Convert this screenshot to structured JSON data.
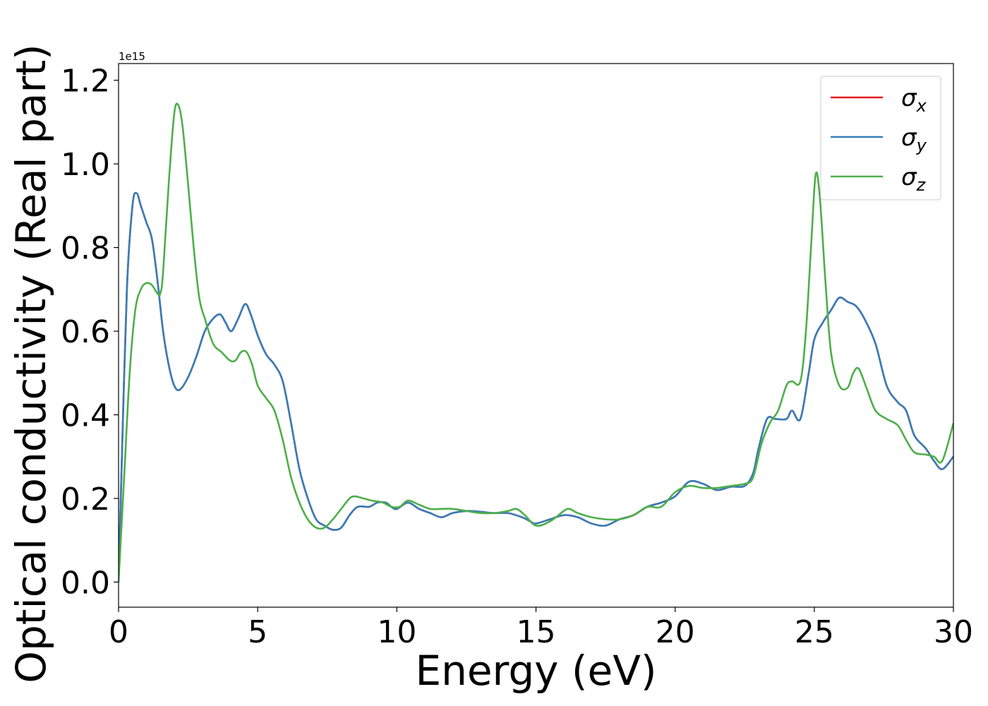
{
  "chart_data": {
    "type": "line",
    "xlabel": "Energy (eV)",
    "ylabel": "Optical conductivity (Real part)",
    "y_offset_text": "1e15",
    "y_scale": 1000000000000000.0,
    "xlim": [
      0,
      30
    ],
    "ylim": [
      -0.06,
      1.24
    ],
    "xticks": [
      0,
      5,
      10,
      15,
      20,
      25,
      30
    ],
    "xtick_labels": [
      "0",
      "5",
      "10",
      "15",
      "20",
      "25",
      "30"
    ],
    "yticks": [
      0.0,
      0.2,
      0.4,
      0.6,
      0.8,
      1.0,
      1.2
    ],
    "ytick_labels": [
      "0.0",
      "0.2",
      "0.4",
      "0.6",
      "0.8",
      "1.0",
      "1.2"
    ],
    "grid": false,
    "legend_position": "top-right",
    "series": [
      {
        "name": "σx",
        "symbol": "σ",
        "subscript": "x",
        "color": "#e41a1c",
        "x": [
          0,
          0.1,
          0.3,
          0.5,
          0.65,
          0.8,
          1.0,
          1.2,
          1.4,
          1.6,
          1.8,
          2.0,
          2.2,
          2.5,
          2.8,
          3.1,
          3.4,
          3.65,
          3.85,
          4.05,
          4.3,
          4.55,
          4.75,
          5.0,
          5.3,
          5.6,
          5.9,
          6.2,
          6.5,
          6.8,
          7.1,
          7.4,
          7.7,
          8.0,
          8.3,
          8.6,
          9.0,
          9.3,
          9.6,
          9.8,
          10.0,
          10.4,
          10.8,
          11.2,
          11.6,
          12.0,
          12.5,
          13.0,
          13.5,
          14.0,
          14.5,
          14.8,
          15.0,
          15.5,
          16.0,
          16.5,
          17.0,
          17.5,
          18.0,
          18.5,
          19.0,
          19.5,
          20.0,
          20.5,
          21.0,
          21.5,
          22.0,
          22.5,
          22.8,
          23.0,
          23.3,
          23.6,
          24.0,
          24.2,
          24.5,
          24.8,
          25.0,
          25.3,
          25.6,
          25.9,
          26.2,
          26.5,
          26.8,
          27.2,
          27.6,
          28.0,
          28.3,
          28.6,
          29.0,
          29.3,
          29.6,
          30.0
        ],
        "y": [
          0.0,
          0.25,
          0.7,
          0.9,
          0.93,
          0.9,
          0.86,
          0.82,
          0.72,
          0.6,
          0.52,
          0.47,
          0.46,
          0.49,
          0.54,
          0.6,
          0.63,
          0.64,
          0.62,
          0.6,
          0.63,
          0.665,
          0.64,
          0.59,
          0.545,
          0.52,
          0.48,
          0.38,
          0.27,
          0.2,
          0.15,
          0.135,
          0.125,
          0.13,
          0.16,
          0.18,
          0.18,
          0.19,
          0.19,
          0.18,
          0.175,
          0.19,
          0.175,
          0.165,
          0.155,
          0.165,
          0.17,
          0.168,
          0.165,
          0.165,
          0.155,
          0.145,
          0.14,
          0.15,
          0.16,
          0.155,
          0.14,
          0.135,
          0.15,
          0.16,
          0.18,
          0.19,
          0.205,
          0.24,
          0.235,
          0.22,
          0.228,
          0.23,
          0.26,
          0.32,
          0.39,
          0.39,
          0.39,
          0.41,
          0.39,
          0.5,
          0.58,
          0.62,
          0.65,
          0.68,
          0.67,
          0.66,
          0.63,
          0.57,
          0.47,
          0.43,
          0.41,
          0.35,
          0.32,
          0.29,
          0.27,
          0.3
        ]
      },
      {
        "name": "σy",
        "symbol": "σ",
        "subscript": "y",
        "color": "#377eb8",
        "x": [
          0,
          0.1,
          0.3,
          0.5,
          0.65,
          0.8,
          1.0,
          1.2,
          1.4,
          1.6,
          1.8,
          2.0,
          2.2,
          2.5,
          2.8,
          3.1,
          3.4,
          3.65,
          3.85,
          4.05,
          4.3,
          4.55,
          4.75,
          5.0,
          5.3,
          5.6,
          5.9,
          6.2,
          6.5,
          6.8,
          7.1,
          7.4,
          7.7,
          8.0,
          8.3,
          8.6,
          9.0,
          9.3,
          9.6,
          9.8,
          10.0,
          10.4,
          10.8,
          11.2,
          11.6,
          12.0,
          12.5,
          13.0,
          13.5,
          14.0,
          14.5,
          14.8,
          15.0,
          15.5,
          16.0,
          16.5,
          17.0,
          17.5,
          18.0,
          18.5,
          19.0,
          19.5,
          20.0,
          20.5,
          21.0,
          21.5,
          22.0,
          22.5,
          22.8,
          23.0,
          23.3,
          23.6,
          24.0,
          24.2,
          24.5,
          24.8,
          25.0,
          25.3,
          25.6,
          25.9,
          26.2,
          26.5,
          26.8,
          27.2,
          27.6,
          28.0,
          28.3,
          28.6,
          29.0,
          29.3,
          29.6,
          30.0
        ],
        "y": [
          0.0,
          0.25,
          0.7,
          0.9,
          0.93,
          0.9,
          0.86,
          0.82,
          0.72,
          0.6,
          0.52,
          0.47,
          0.46,
          0.49,
          0.54,
          0.6,
          0.63,
          0.64,
          0.62,
          0.6,
          0.63,
          0.665,
          0.64,
          0.59,
          0.545,
          0.52,
          0.48,
          0.38,
          0.27,
          0.2,
          0.15,
          0.135,
          0.125,
          0.13,
          0.16,
          0.18,
          0.18,
          0.19,
          0.19,
          0.18,
          0.175,
          0.19,
          0.175,
          0.165,
          0.155,
          0.165,
          0.17,
          0.168,
          0.165,
          0.165,
          0.155,
          0.145,
          0.14,
          0.15,
          0.16,
          0.155,
          0.14,
          0.135,
          0.15,
          0.16,
          0.18,
          0.19,
          0.205,
          0.24,
          0.235,
          0.22,
          0.228,
          0.23,
          0.26,
          0.32,
          0.39,
          0.39,
          0.39,
          0.41,
          0.39,
          0.5,
          0.58,
          0.62,
          0.65,
          0.68,
          0.67,
          0.66,
          0.63,
          0.57,
          0.47,
          0.43,
          0.41,
          0.35,
          0.32,
          0.29,
          0.27,
          0.3
        ]
      },
      {
        "name": "σz",
        "symbol": "σ",
        "subscript": "z",
        "color": "#4daf4a",
        "x": [
          0,
          0.2,
          0.4,
          0.6,
          0.8,
          1.0,
          1.2,
          1.4,
          1.5,
          1.6,
          1.8,
          2.0,
          2.15,
          2.3,
          2.5,
          2.7,
          2.9,
          3.1,
          3.4,
          3.7,
          4.0,
          4.2,
          4.4,
          4.6,
          4.8,
          5.0,
          5.3,
          5.6,
          5.9,
          6.2,
          6.5,
          6.8,
          7.1,
          7.4,
          7.7,
          8.0,
          8.3,
          8.5,
          8.8,
          9.1,
          9.5,
          9.8,
          10.1,
          10.4,
          10.8,
          11.2,
          11.6,
          12.0,
          12.5,
          13.0,
          13.5,
          14.0,
          14.3,
          14.6,
          15.0,
          15.5,
          16.0,
          16.2,
          16.5,
          17.0,
          17.5,
          18.0,
          18.5,
          19.0,
          19.5,
          20.0,
          20.5,
          21.0,
          21.5,
          22.0,
          22.5,
          22.8,
          23.1,
          23.4,
          23.7,
          24.0,
          24.2,
          24.5,
          24.7,
          24.9,
          25.05,
          25.2,
          25.4,
          25.6,
          25.9,
          26.2,
          26.4,
          26.6,
          26.9,
          27.2,
          27.6,
          28.0,
          28.3,
          28.6,
          29.0,
          29.3,
          29.6,
          30.0
        ],
        "y": [
          0.0,
          0.25,
          0.5,
          0.65,
          0.7,
          0.715,
          0.71,
          0.69,
          0.69,
          0.74,
          0.95,
          1.12,
          1.14,
          1.09,
          0.95,
          0.8,
          0.68,
          0.63,
          0.57,
          0.55,
          0.53,
          0.53,
          0.55,
          0.55,
          0.52,
          0.47,
          0.44,
          0.41,
          0.34,
          0.25,
          0.19,
          0.15,
          0.13,
          0.13,
          0.15,
          0.175,
          0.2,
          0.205,
          0.2,
          0.195,
          0.19,
          0.18,
          0.18,
          0.195,
          0.185,
          0.175,
          0.175,
          0.175,
          0.17,
          0.165,
          0.165,
          0.17,
          0.175,
          0.16,
          0.135,
          0.145,
          0.17,
          0.175,
          0.165,
          0.155,
          0.15,
          0.15,
          0.16,
          0.18,
          0.18,
          0.215,
          0.23,
          0.225,
          0.225,
          0.23,
          0.235,
          0.25,
          0.33,
          0.38,
          0.41,
          0.47,
          0.48,
          0.48,
          0.6,
          0.82,
          0.975,
          0.92,
          0.72,
          0.55,
          0.47,
          0.465,
          0.5,
          0.51,
          0.46,
          0.41,
          0.39,
          0.375,
          0.34,
          0.31,
          0.305,
          0.3,
          0.29,
          0.38
        ]
      }
    ]
  }
}
